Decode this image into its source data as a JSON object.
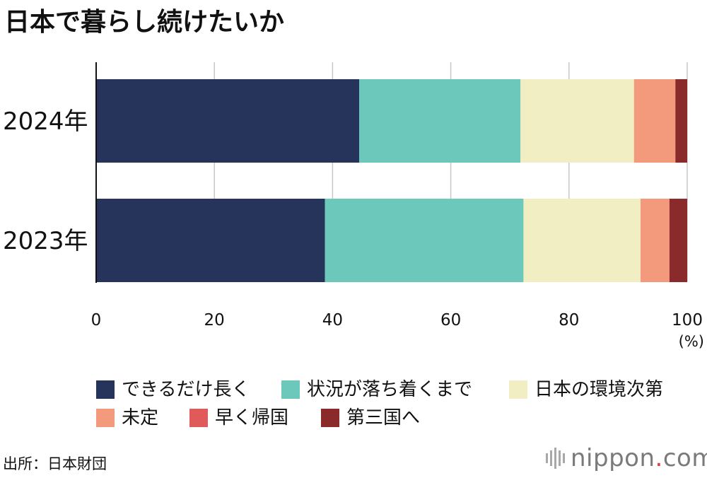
{
  "header": {
    "title": "日本で暮らし続けたいか"
  },
  "chart_data": {
    "type": "bar",
    "orientation": "horizontal",
    "stacked": true,
    "categories": [
      "2024年",
      "2023年"
    ],
    "series": [
      {
        "name": "できるだけ長く",
        "color": "#26335b",
        "values": [
          44.5,
          38.7
        ]
      },
      {
        "name": "状況が落ち着くまで",
        "color": "#6bc8bb",
        "values": [
          27.3,
          33.6
        ]
      },
      {
        "name": "日本の環境次第",
        "color": "#f2eec3",
        "values": [
          19.2,
          19.8
        ]
      },
      {
        "name": "未定",
        "color": "#f29a7b",
        "values": [
          7.0,
          4.9
        ]
      },
      {
        "name": "早く帰国",
        "color": "#e05a5a",
        "values": [
          0.0,
          0.0
        ]
      },
      {
        "name": "第三国へ",
        "color": "#8b2a2a",
        "values": [
          2.0,
          3.0
        ]
      }
    ],
    "xlim": [
      0,
      100
    ],
    "x_ticks": [
      "0",
      "20",
      "40",
      "60",
      "80",
      "100"
    ],
    "x_tick_values": [
      0,
      20,
      40,
      60,
      80,
      100
    ],
    "xunit": "(%)",
    "grid": true,
    "legend_position": "bottom"
  },
  "footer": {
    "source": "出所：日本財団",
    "brand_name": "nippon",
    "brand_dot": ".",
    "brand_suffix": "com"
  }
}
